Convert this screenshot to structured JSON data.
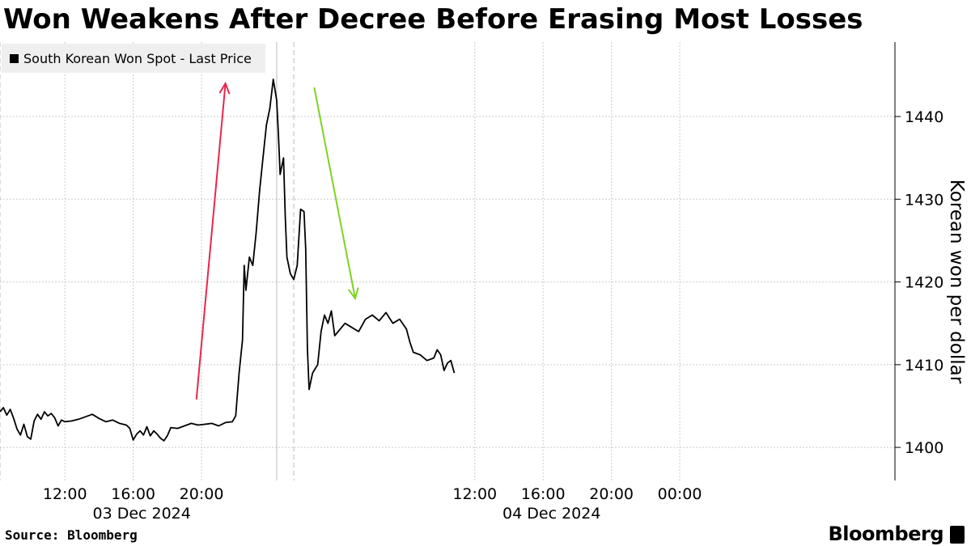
{
  "title": "Won Weakens After Decree Before Erasing Most Losses",
  "legend": {
    "label": "South Korean Won Spot - Last Price"
  },
  "source": "Source: Bloomberg",
  "brand": "Bloomberg",
  "brand_icon": "bloomberg-terminal-icon",
  "colors": {
    "line": "#000000",
    "up_arrow": "#e8274b",
    "down_arrow": "#7ed321",
    "grid": "#cccccc"
  },
  "chart_data": {
    "type": "line",
    "ylabel": "Korean won per dollar",
    "ylim": [
      1396,
      1449
    ],
    "yticks": [
      1400,
      1410,
      1420,
      1430,
      1440
    ],
    "x_unit": "hours since 2024-12-03 00:00",
    "xlim": [
      8.2,
      60.6
    ],
    "xticks": [
      {
        "x": 12,
        "label": "12:00"
      },
      {
        "x": 16,
        "label": "16:00"
      },
      {
        "x": 20,
        "label": "20:00"
      },
      {
        "x": 36,
        "label": "12:00"
      },
      {
        "x": 40,
        "label": "16:00"
      },
      {
        "x": 44,
        "label": "20:00"
      },
      {
        "x": 48,
        "label": "00:00"
      }
    ],
    "date_labels": [
      {
        "x": 16.5,
        "label": "03 Dec 2024"
      },
      {
        "x": 40.5,
        "label": "04 Dec 2024"
      }
    ],
    "grid": true,
    "vlines": [
      {
        "x": 8.2,
        "style": "dashed"
      },
      {
        "x": 24.4,
        "style": "solid"
      },
      {
        "x": 25.4,
        "style": "dashed"
      }
    ],
    "series": [
      {
        "name": "South Korean Won Spot - Last Price",
        "points": [
          [
            8.2,
            1404.3
          ],
          [
            8.4,
            1404.8
          ],
          [
            8.6,
            1403.9
          ],
          [
            8.8,
            1404.6
          ],
          [
            9.0,
            1403.5
          ],
          [
            9.2,
            1402.2
          ],
          [
            9.4,
            1401.5
          ],
          [
            9.6,
            1402.8
          ],
          [
            9.8,
            1401.3
          ],
          [
            10.0,
            1401.0
          ],
          [
            10.2,
            1403.2
          ],
          [
            10.4,
            1404.0
          ],
          [
            10.6,
            1403.4
          ],
          [
            10.8,
            1404.3
          ],
          [
            11.0,
            1403.8
          ],
          [
            11.2,
            1404.1
          ],
          [
            11.4,
            1403.6
          ],
          [
            11.6,
            1402.6
          ],
          [
            11.8,
            1403.3
          ],
          [
            12.0,
            1403.1
          ],
          [
            12.4,
            1403.2
          ],
          [
            12.8,
            1403.4
          ],
          [
            13.2,
            1403.7
          ],
          [
            13.6,
            1404.0
          ],
          [
            14.0,
            1403.5
          ],
          [
            14.4,
            1403.1
          ],
          [
            14.8,
            1403.3
          ],
          [
            15.2,
            1402.9
          ],
          [
            15.6,
            1402.7
          ],
          [
            15.8,
            1402.3
          ],
          [
            16.0,
            1400.9
          ],
          [
            16.2,
            1401.6
          ],
          [
            16.4,
            1402.0
          ],
          [
            16.6,
            1401.5
          ],
          [
            16.8,
            1402.5
          ],
          [
            17.0,
            1401.4
          ],
          [
            17.2,
            1402.0
          ],
          [
            17.4,
            1401.6
          ],
          [
            17.6,
            1401.1
          ],
          [
            17.8,
            1400.8
          ],
          [
            18.0,
            1401.4
          ],
          [
            18.2,
            1402.4
          ],
          [
            18.6,
            1402.3
          ],
          [
            19.0,
            1402.6
          ],
          [
            19.4,
            1402.9
          ],
          [
            19.8,
            1402.7
          ],
          [
            20.2,
            1402.8
          ],
          [
            20.6,
            1402.9
          ],
          [
            21.0,
            1402.6
          ],
          [
            21.4,
            1403.0
          ],
          [
            21.8,
            1403.1
          ],
          [
            22.0,
            1403.8
          ],
          [
            22.2,
            1409.0
          ],
          [
            22.4,
            1413.0
          ],
          [
            22.5,
            1422.0
          ],
          [
            22.6,
            1419.0
          ],
          [
            22.8,
            1423.0
          ],
          [
            23.0,
            1422.0
          ],
          [
            23.2,
            1426.0
          ],
          [
            23.4,
            1431.0
          ],
          [
            23.6,
            1435.0
          ],
          [
            23.8,
            1439.0
          ],
          [
            24.0,
            1441.0
          ],
          [
            24.2,
            1444.5
          ],
          [
            24.4,
            1442.0
          ],
          [
            24.5,
            1438.0
          ],
          [
            24.6,
            1433.0
          ],
          [
            24.8,
            1435.0
          ],
          [
            24.9,
            1428.0
          ],
          [
            25.0,
            1423.0
          ],
          [
            25.2,
            1421.0
          ],
          [
            25.4,
            1420.3
          ],
          [
            25.6,
            1422.0
          ],
          [
            25.8,
            1428.8
          ],
          [
            26.0,
            1428.5
          ],
          [
            26.1,
            1424.0
          ],
          [
            26.2,
            1412.0
          ],
          [
            26.3,
            1407.0
          ],
          [
            26.5,
            1409.0
          ],
          [
            26.8,
            1410.0
          ],
          [
            27.0,
            1414.0
          ],
          [
            27.2,
            1416.0
          ],
          [
            27.4,
            1415.0
          ],
          [
            27.6,
            1416.5
          ],
          [
            27.8,
            1413.5
          ],
          [
            28.0,
            1414.0
          ],
          [
            28.4,
            1415.0
          ],
          [
            28.8,
            1414.5
          ],
          [
            29.2,
            1414.0
          ],
          [
            29.6,
            1415.5
          ],
          [
            30.0,
            1416.0
          ],
          [
            30.4,
            1415.3
          ],
          [
            30.8,
            1416.3
          ],
          [
            31.2,
            1415.0
          ],
          [
            31.6,
            1415.5
          ],
          [
            32.0,
            1414.3
          ],
          [
            32.2,
            1412.7
          ],
          [
            32.4,
            1411.5
          ],
          [
            32.8,
            1411.2
          ],
          [
            33.2,
            1410.5
          ],
          [
            33.6,
            1410.8
          ],
          [
            33.8,
            1411.8
          ],
          [
            34.0,
            1411.2
          ],
          [
            34.2,
            1409.3
          ],
          [
            34.4,
            1410.2
          ],
          [
            34.6,
            1410.5
          ],
          [
            34.8,
            1409.0
          ]
        ]
      }
    ],
    "annotations": [
      {
        "type": "arrow",
        "color": "up",
        "from": [
          19.7,
          1405.8
        ],
        "to": [
          21.4,
          1444.0
        ]
      },
      {
        "type": "arrow",
        "color": "down",
        "from": [
          26.6,
          1443.5
        ],
        "to": [
          29.0,
          1418.0
        ]
      }
    ]
  }
}
